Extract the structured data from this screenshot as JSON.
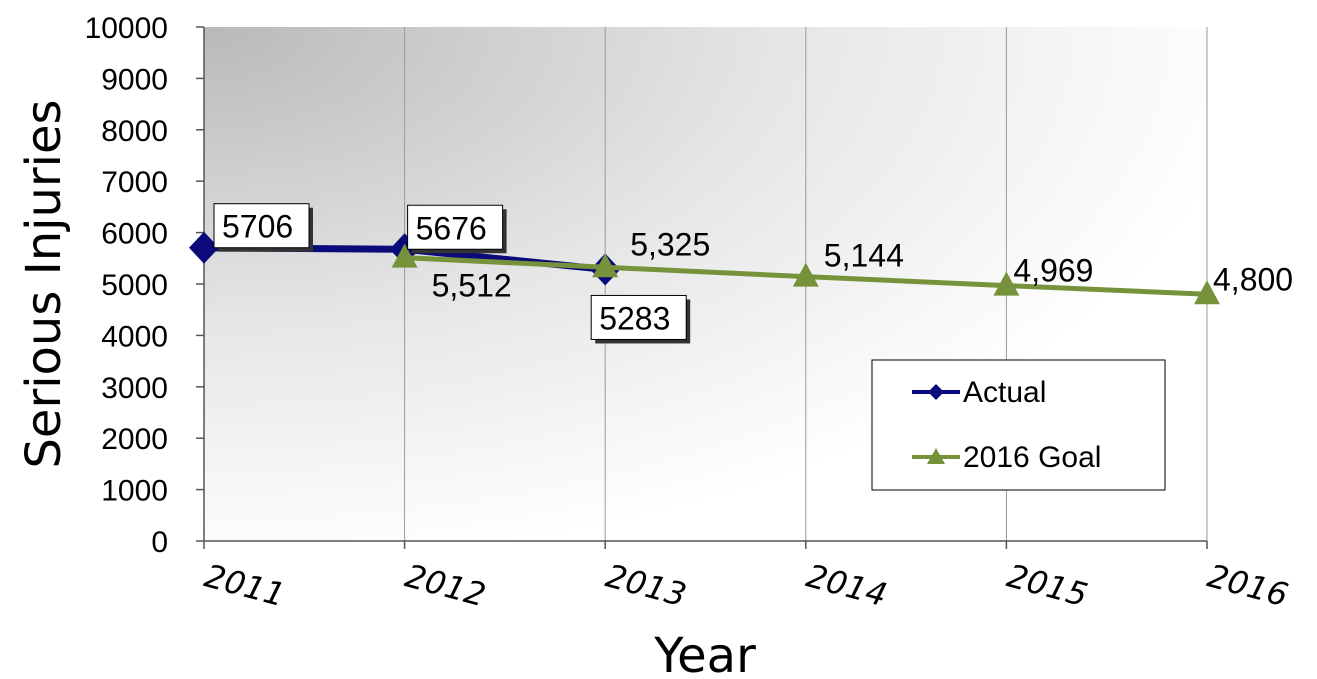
{
  "chart_data": {
    "type": "line",
    "xlabel": "Year",
    "ylabel": "Serious Injuries",
    "ylim": [
      0,
      10000
    ],
    "yticks": [
      "0",
      "1000",
      "2000",
      "3000",
      "4000",
      "5000",
      "6000",
      "7000",
      "8000",
      "9000",
      "10000"
    ],
    "categories": [
      "2011",
      "2012",
      "2013",
      "2014",
      "2015",
      "2016"
    ],
    "grid": "vertical",
    "legend_position": "right",
    "series": [
      {
        "name": "Actual",
        "color": "#0a0a7a",
        "marker": "diamond",
        "x": [
          "2011",
          "2012",
          "2013"
        ],
        "values": [
          5706,
          5676,
          5283
        ],
        "labels": [
          "5706",
          "5676",
          "5283"
        ]
      },
      {
        "name": "2016 Goal",
        "color": "#76933c",
        "marker": "triangle",
        "x": [
          "2012",
          "2013",
          "2014",
          "2015",
          "2016"
        ],
        "values": [
          5512,
          5325,
          5144,
          4969,
          4800
        ],
        "labels": [
          "5,512",
          "5,325",
          "5,144",
          "4,969",
          "4,800"
        ]
      }
    ]
  }
}
